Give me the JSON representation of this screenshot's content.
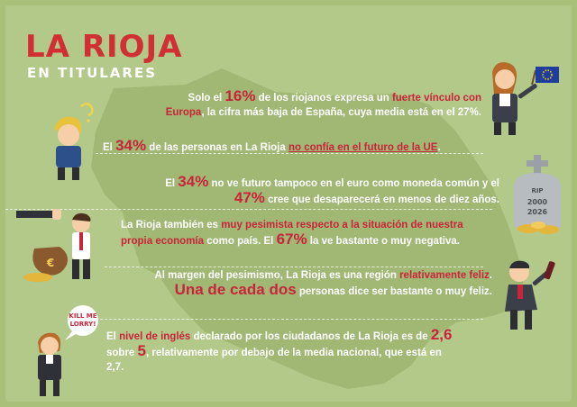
{
  "header": {
    "title": "LA RIOJA",
    "subtitle": "EN TITULARES"
  },
  "headlines": [
    {
      "p1": "Solo el ",
      "h1": "16%",
      "p2": " de los riojanos expresa un ",
      "h2": "fuerte vínculo con Europa",
      "p3": ", la cifra más baja de España, cuya media está en el 27%."
    },
    {
      "p1": "El ",
      "h1": "34%",
      "p2": " de las personas en La Rioja ",
      "h2": "no confía en el futuro de la UE",
      "p3": "."
    },
    {
      "p1": "El ",
      "h1": "34%",
      "p2": " no ve futuro tampoco en el euro como moneda común y el ",
      "h2": "47%",
      "p3": " cree que desaparecerá en menos de diez años."
    },
    {
      "p1": "La Rioja también es ",
      "h1": "muy pesimista respecto a la situación de nuestra propia economía",
      "p2": " como país. El ",
      "h2": "67%",
      "p3": " la ve bastante o muy negativa."
    },
    {
      "p1": "Al margen del pesimismo, La Rioja es una región ",
      "h1": "relativamente feliz",
      "p2": ". ",
      "h2": "Una de cada dos",
      "p3": " personas dice ser bastante o muy feliz."
    },
    {
      "p1": "El ",
      "h1": "nivel de inglés",
      "p2": " declarado por los ciudadanos de La Rioja es de ",
      "h2": "2,6",
      "p3": " sobre ",
      "h3": "5",
      "p4": ", relativamente por debajo de la media nacional, que está en 2,7."
    }
  ],
  "illustrations": {
    "gravestone_line1": "RIP",
    "gravestone_line2": "2000",
    "gravestone_line3": "2026",
    "speech_bubble": "KILL ME LORRY!",
    "moneybag_symbol": "€"
  },
  "colors": {
    "background": "#b3c98a",
    "map": "#9fb772",
    "accent": "#d12f33"
  }
}
